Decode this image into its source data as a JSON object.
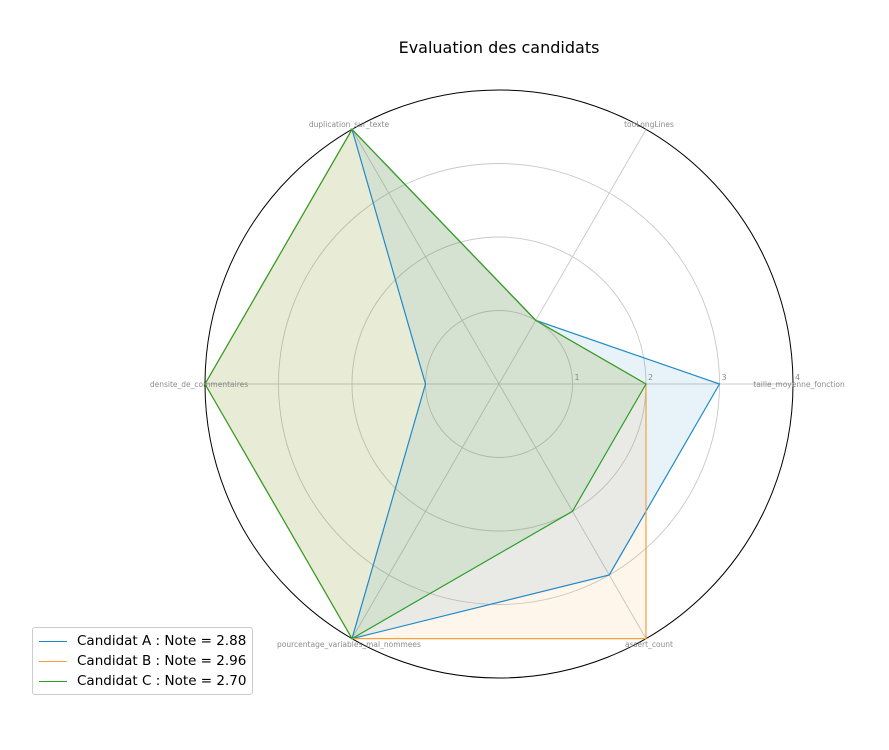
{
  "chart_data": {
    "type": "radar",
    "title": "Evaluation des candidats",
    "axes": [
      "taille_moyenne_fonction",
      "tooLongLines",
      "duplication_sur_texte",
      "densite_de_commentaires",
      "pourcentage_variables_mal_nommees",
      "assert_count"
    ],
    "r_ticks": [
      "1",
      "2",
      "3",
      "4"
    ],
    "rlim": [
      0,
      4
    ],
    "series": [
      {
        "name": "Candidat A : Note = 2.88",
        "color": "#1f8ac9",
        "values": [
          3,
          1,
          4,
          1,
          4,
          3
        ]
      },
      {
        "name": "Candidat B : Note = 2.96",
        "color": "#f4a13a",
        "values": [
          2,
          1,
          4,
          4,
          4,
          4
        ]
      },
      {
        "name": "Candidat C : Note = 2.70",
        "color": "#2ca02c",
        "values": [
          2,
          1,
          4,
          4,
          4,
          2
        ]
      }
    ],
    "grid": true,
    "legend_position": "bottom-left"
  }
}
